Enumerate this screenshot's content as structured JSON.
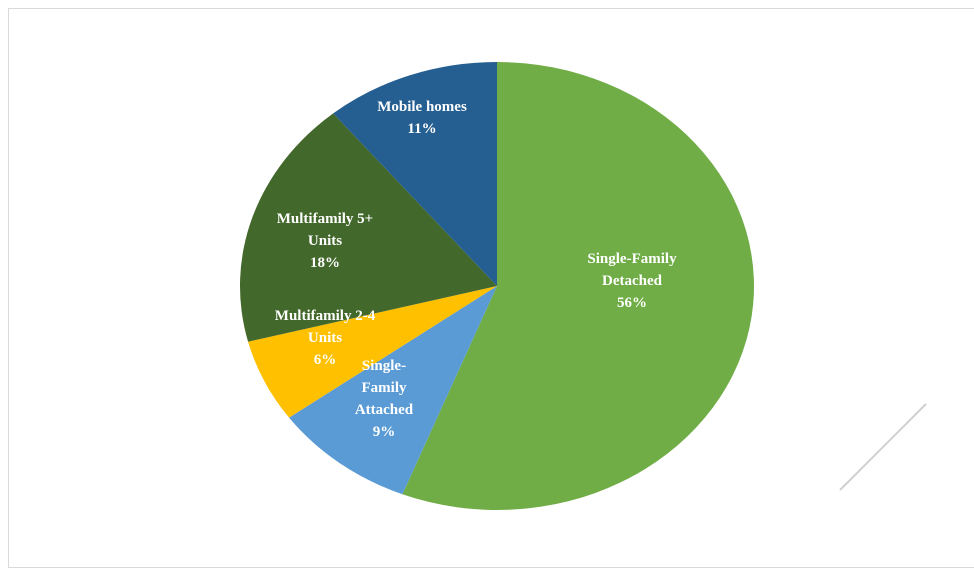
{
  "chart_data": {
    "type": "pie",
    "slices": [
      {
        "label_lines": [
          "Single-Family",
          "Detached"
        ],
        "value": 56,
        "value_label": "56%",
        "color": "#70ad47"
      },
      {
        "label_lines": [
          "Single-",
          "Family",
          "Attached"
        ],
        "value": 9,
        "value_label": "9%",
        "color": "#5b9bd5"
      },
      {
        "label_lines": [
          "Multifamily 2-4",
          "Units"
        ],
        "value": 6,
        "value_label": "6%",
        "color": "#ffc000"
      },
      {
        "label_lines": [
          "Multifamily 5+",
          "Units"
        ],
        "value": 18,
        "value_label": "18%",
        "color": "#43682b"
      },
      {
        "label_lines": [
          "Mobile homes"
        ],
        "value": 11,
        "value_label": "11%",
        "color": "#255e91"
      }
    ],
    "start_angle": "12 o'clock",
    "direction": "clockwise",
    "legend": "none",
    "data_labels": "inside"
  }
}
